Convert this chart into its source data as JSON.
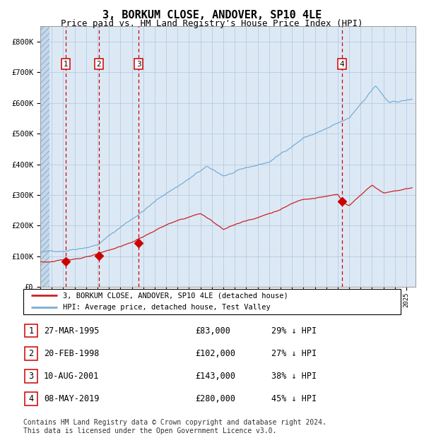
{
  "title": "3, BORKUM CLOSE, ANDOVER, SP10 4LE",
  "subtitle": "Price paid vs. HM Land Registry's House Price Index (HPI)",
  "title_fontsize": 11,
  "subtitle_fontsize": 9,
  "plot_bg": "#dce9f5",
  "grid_color": "#b0c4de",
  "ylim": [
    0,
    850000
  ],
  "yticks": [
    0,
    100000,
    200000,
    300000,
    400000,
    500000,
    600000,
    700000,
    800000
  ],
  "ytick_labels": [
    "£0",
    "£100K",
    "£200K",
    "£300K",
    "£400K",
    "£500K",
    "£600K",
    "£700K",
    "£800K"
  ],
  "xlim_start": 1993.0,
  "xlim_end": 2025.8,
  "purchase_dates": [
    1995.23,
    1998.13,
    2001.61,
    2019.36
  ],
  "purchase_prices": [
    83000,
    102000,
    143000,
    280000
  ],
  "purchase_labels": [
    "1",
    "2",
    "3",
    "4"
  ],
  "hpi_line_color": "#7aadd4",
  "price_line_color": "#cc2222",
  "marker_color": "#cc0000",
  "vline_color": "#cc0000",
  "legend_label_red": "3, BORKUM CLOSE, ANDOVER, SP10 4LE (detached house)",
  "legend_label_blue": "HPI: Average price, detached house, Test Valley",
  "table_entries": [
    {
      "num": "1",
      "date": "27-MAR-1995",
      "price": "£83,000",
      "hpi": "29% ↓ HPI"
    },
    {
      "num": "2",
      "date": "20-FEB-1998",
      "price": "£102,000",
      "hpi": "27% ↓ HPI"
    },
    {
      "num": "3",
      "date": "10-AUG-2001",
      "price": "£143,000",
      "hpi": "38% ↓ HPI"
    },
    {
      "num": "4",
      "date": "08-MAY-2019",
      "price": "£280,000",
      "hpi": "45% ↓ HPI"
    }
  ],
  "footer": "Contains HM Land Registry data © Crown copyright and database right 2024.\nThis data is licensed under the Open Government Licence v3.0.",
  "footer_fontsize": 7
}
